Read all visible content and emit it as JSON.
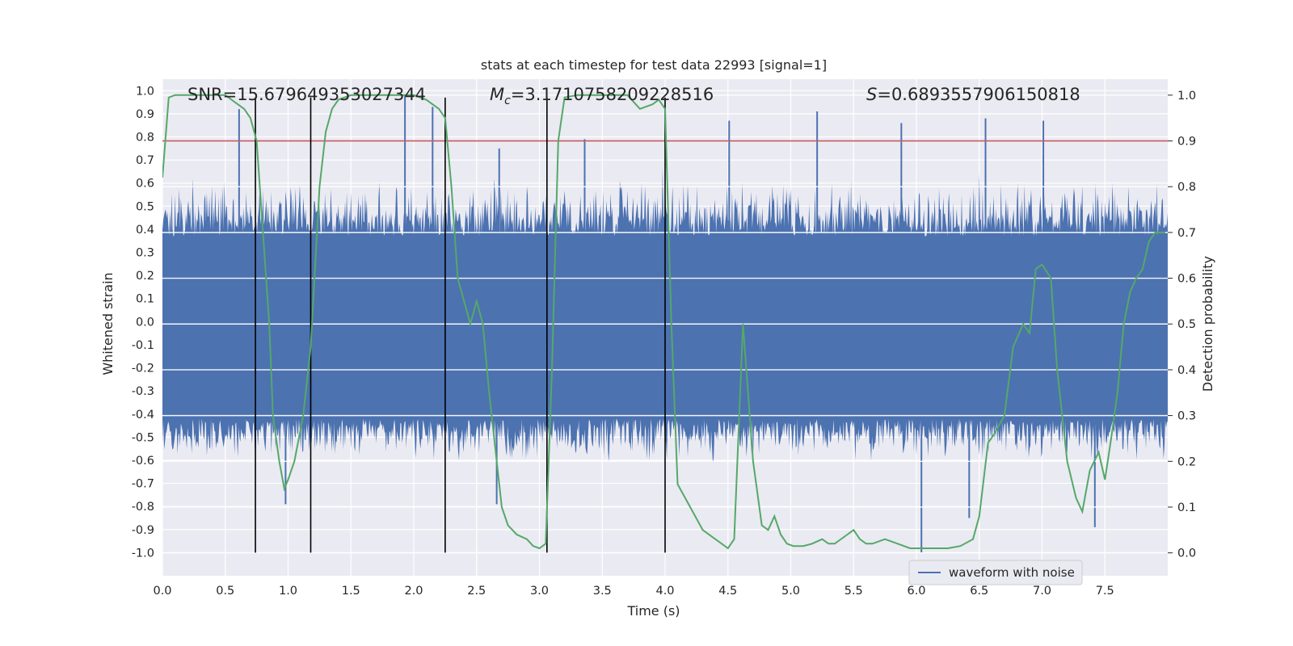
{
  "chart_data": {
    "type": "line",
    "title": "stats at each timestep for test data 22993 [signal=1]",
    "xlabel": "Time (s)",
    "ylabel_left": "Whitened strain",
    "ylabel_right": "Detection probability",
    "xlim": [
      0,
      8
    ],
    "ylim_left": [
      -1.1,
      1.05
    ],
    "ylim_right": [
      -0.05,
      1.035
    ],
    "x_ticks": [
      0.0,
      0.5,
      1.0,
      1.5,
      2.0,
      2.5,
      3.0,
      3.5,
      4.0,
      4.5,
      5.0,
      5.5,
      6.0,
      6.5,
      7.0,
      7.5
    ],
    "x_tick_labels": [
      "0.0",
      "0.5",
      "1.0",
      "1.5",
      "2.0",
      "2.5",
      "3.0",
      "3.5",
      "4.0",
      "4.5",
      "5.0",
      "5.5",
      "6.0",
      "6.5",
      "7.0",
      "7.5"
    ],
    "y_left_ticks": [
      1.0,
      0.9,
      0.8,
      0.7,
      0.6,
      0.5,
      0.4,
      0.3,
      0.2,
      0.1,
      0.0,
      -0.1,
      -0.2,
      -0.3,
      -0.4,
      -0.5,
      -0.6,
      -0.7,
      -0.8,
      -0.9,
      -1.0
    ],
    "y_left_tick_labels": [
      "1.0",
      "0.9",
      "0.8",
      "0.7",
      "0.6",
      "0.5",
      "0.4",
      "0.3",
      "0.2",
      "0.1",
      "0.0",
      "-0.1",
      "-0.2",
      "-0.3",
      "-0.4",
      "-0.5",
      "-0.6",
      "-0.7",
      "-0.8",
      "-0.9",
      "-1.0"
    ],
    "y_right_ticks": [
      1.0,
      0.9,
      0.8,
      0.7,
      0.6,
      0.5,
      0.4,
      0.3,
      0.2,
      0.1,
      0.0
    ],
    "y_right_tick_labels": [
      "1.0",
      "0.9",
      "0.8",
      "0.7",
      "0.6",
      "0.5",
      "0.4",
      "0.3",
      "0.2",
      "0.1",
      "0.0"
    ],
    "annotations": {
      "snr": "SNR=15.679649353027344",
      "mc_symbol": "M",
      "mc_sub": "c",
      "mc_value": "=3.1710758209228516",
      "s_symbol": "S",
      "s_value": "=0.6893557906150818"
    },
    "threshold": {
      "value": 0.9,
      "axis": "right",
      "color": "#c44e52"
    },
    "vertical_markers": {
      "x": [
        0.74,
        1.18,
        2.25,
        3.06,
        4.0
      ],
      "y_range": [
        -1.0,
        0.97
      ],
      "color": "#000000"
    },
    "waveform": {
      "name": "waveform with noise",
      "color": "#4c72b0",
      "n_points": 1200,
      "core_band": [
        -0.42,
        0.37
      ],
      "typical_extent": 0.62,
      "peaks": [
        {
          "x": 1.93,
          "y": 0.98
        },
        {
          "x": 2.15,
          "y": 0.93
        },
        {
          "x": 0.61,
          "y": 0.92
        },
        {
          "x": 5.21,
          "y": 0.91
        },
        {
          "x": 4.51,
          "y": 0.87
        },
        {
          "x": 5.88,
          "y": 0.86
        },
        {
          "x": 6.55,
          "y": 0.88
        },
        {
          "x": 7.01,
          "y": 0.87
        },
        {
          "x": 3.36,
          "y": 0.79
        },
        {
          "x": 2.68,
          "y": 0.75
        },
        {
          "x": 6.04,
          "y": -1.0
        },
        {
          "x": 7.42,
          "y": -0.89
        },
        {
          "x": 6.42,
          "y": -0.85
        },
        {
          "x": 0.98,
          "y": -0.79
        },
        {
          "x": 2.66,
          "y": -0.79
        }
      ]
    },
    "probability": {
      "name": "detection probability",
      "color": "#55a868",
      "x": [
        0.0,
        0.05,
        0.1,
        0.2,
        0.3,
        0.4,
        0.5,
        0.55,
        0.6,
        0.65,
        0.7,
        0.75,
        0.8,
        0.85,
        0.88,
        0.93,
        0.97,
        1.0,
        1.05,
        1.12,
        1.18,
        1.25,
        1.3,
        1.35,
        1.4,
        1.5,
        1.6,
        1.7,
        1.8,
        1.9,
        2.0,
        2.1,
        2.15,
        2.2,
        2.25,
        2.3,
        2.35,
        2.4,
        2.45,
        2.5,
        2.55,
        2.6,
        2.7,
        2.75,
        2.82,
        2.9,
        2.95,
        3.0,
        3.05,
        3.1,
        3.15,
        3.2,
        3.3,
        3.4,
        3.5,
        3.6,
        3.7,
        3.8,
        3.9,
        3.95,
        4.0,
        4.05,
        4.1,
        4.2,
        4.3,
        4.4,
        4.45,
        4.5,
        4.55,
        4.62,
        4.7,
        4.77,
        4.82,
        4.87,
        4.92,
        4.97,
        5.02,
        5.1,
        5.17,
        5.25,
        5.3,
        5.35,
        5.45,
        5.5,
        5.55,
        5.6,
        5.65,
        5.75,
        5.85,
        5.95,
        6.05,
        6.15,
        6.25,
        6.35,
        6.45,
        6.5,
        6.57,
        6.62,
        6.7,
        6.77,
        6.85,
        6.9,
        6.95,
        7.0,
        7.07,
        7.12,
        7.2,
        7.27,
        7.32,
        7.38,
        7.45,
        7.5,
        7.55,
        7.6,
        7.65,
        7.7,
        7.75,
        7.8,
        7.85,
        7.9,
        7.98
      ],
      "y": [
        0.82,
        0.995,
        1.0,
        1.0,
        1.0,
        1.0,
        1.0,
        0.99,
        0.98,
        0.97,
        0.95,
        0.9,
        0.7,
        0.5,
        0.3,
        0.2,
        0.14,
        0.16,
        0.2,
        0.3,
        0.45,
        0.8,
        0.92,
        0.97,
        0.99,
        1.0,
        1.0,
        1.0,
        1.0,
        1.0,
        1.0,
        0.99,
        0.98,
        0.97,
        0.95,
        0.8,
        0.6,
        0.55,
        0.5,
        0.55,
        0.5,
        0.35,
        0.1,
        0.06,
        0.04,
        0.03,
        0.015,
        0.01,
        0.02,
        0.4,
        0.9,
        0.995,
        1.0,
        1.0,
        1.0,
        1.0,
        1.0,
        0.97,
        0.98,
        0.99,
        0.97,
        0.5,
        0.15,
        0.1,
        0.05,
        0.03,
        0.02,
        0.01,
        0.03,
        0.5,
        0.2,
        0.06,
        0.05,
        0.08,
        0.04,
        0.02,
        0.015,
        0.015,
        0.02,
        0.03,
        0.02,
        0.02,
        0.04,
        0.05,
        0.03,
        0.02,
        0.02,
        0.03,
        0.02,
        0.01,
        0.01,
        0.01,
        0.01,
        0.015,
        0.03,
        0.08,
        0.24,
        0.26,
        0.3,
        0.45,
        0.5,
        0.48,
        0.62,
        0.63,
        0.6,
        0.4,
        0.2,
        0.12,
        0.09,
        0.18,
        0.22,
        0.16,
        0.25,
        0.35,
        0.5,
        0.57,
        0.6,
        0.62,
        0.68,
        0.7,
        0.7
      ]
    },
    "legend": {
      "entries": [
        "waveform with noise"
      ],
      "position": "lower-right"
    }
  }
}
